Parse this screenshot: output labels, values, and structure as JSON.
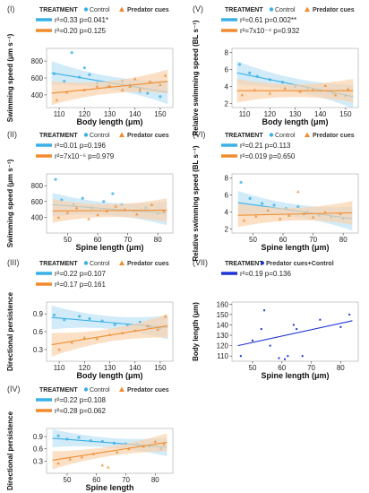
{
  "colors": {
    "control": "#3ab0e6",
    "predator": "#f08c2e",
    "control_band": "#bfe3f6",
    "predator_band": "#f9d3ae",
    "combined": "#1f35d6"
  },
  "chart_data": [
    {
      "id": "I",
      "numeral": "(I)",
      "type": "scatter",
      "legend_title": "TREATMENT",
      "legend_entries": [
        "Control",
        "Predator cues"
      ],
      "xlabel": "Body length (μm)",
      "ylabel": "Swimming speed (μm s⁻¹)",
      "xlim": [
        105,
        155
      ],
      "ylim": [
        250,
        950
      ],
      "xticks": [
        110,
        120,
        130,
        140,
        150
      ],
      "yticks": [
        400,
        600,
        800
      ],
      "stats": [
        {
          "text": "r²=0.33 p=0.041*",
          "color": "control"
        },
        {
          "text": "r²=0.20 p=0.125",
          "color": "predator"
        }
      ],
      "series": [
        {
          "color": "control",
          "fit": [
            [
              107,
              660
            ],
            [
              153,
              430
            ]
          ],
          "points": [
            [
              108,
              650
            ],
            [
              112,
              560
            ],
            [
              115,
              900
            ],
            [
              118,
              610
            ],
            [
              120,
              720
            ],
            [
              122,
              640
            ],
            [
              125,
              540
            ],
            [
              129,
              500
            ],
            [
              135,
              560
            ],
            [
              138,
              520
            ],
            [
              142,
              440
            ],
            [
              145,
              420
            ],
            [
              150,
              380
            ]
          ]
        },
        {
          "color": "predator",
          "fit": [
            [
              107,
              420
            ],
            [
              153,
              560
            ]
          ],
          "points": [
            [
              109,
              340
            ],
            [
              113,
              430
            ],
            [
              120,
              460
            ],
            [
              125,
              500
            ],
            [
              130,
              510
            ],
            [
              135,
              460
            ],
            [
              138,
              500
            ],
            [
              142,
              470
            ],
            [
              146,
              560
            ],
            [
              150,
              520
            ],
            [
              152,
              630
            ],
            [
              140,
              590
            ]
          ]
        }
      ]
    },
    {
      "id": "II",
      "numeral": "(II)",
      "type": "scatter",
      "legend_title": "TREATMENT",
      "legend_entries": [
        "Control",
        "Predator cues"
      ],
      "xlabel": "Spine length (μm)",
      "ylabel": "Swimming speed (μm s⁻¹)",
      "xlim": [
        43,
        85
      ],
      "ylim": [
        200,
        950
      ],
      "xticks": [
        50,
        60,
        70,
        80
      ],
      "yticks": [
        400,
        600,
        800
      ],
      "stats": [
        {
          "text": "r²=0.01 p=0.196",
          "color": "control"
        },
        {
          "text": "r²=7x10⁻⁵ p=0.979",
          "color": "predator"
        }
      ],
      "series": [
        {
          "color": "control",
          "fit": [
            [
              45,
              560
            ],
            [
              83,
              450
            ]
          ],
          "points": [
            [
              46,
              880
            ],
            [
              48,
              620
            ],
            [
              52,
              560
            ],
            [
              55,
              640
            ],
            [
              58,
              520
            ],
            [
              62,
              600
            ],
            [
              65,
              700
            ],
            [
              68,
              560
            ],
            [
              72,
              480
            ],
            [
              76,
              520
            ],
            [
              80,
              450
            ]
          ]
        },
        {
          "color": "predator",
          "fit": [
            [
              45,
              480
            ],
            [
              83,
              490
            ]
          ],
          "points": [
            [
              47,
              400
            ],
            [
              50,
              460
            ],
            [
              53,
              520
            ],
            [
              57,
              380
            ],
            [
              60,
              430
            ],
            [
              63,
              480
            ],
            [
              66,
              540
            ],
            [
              69,
              500
            ],
            [
              73,
              440
            ],
            [
              78,
              560
            ],
            [
              82,
              480
            ]
          ]
        }
      ]
    },
    {
      "id": "III",
      "numeral": "(III)",
      "type": "scatter",
      "legend_title": "TREATMENT",
      "legend_entries": [
        "Control",
        "Predator cues"
      ],
      "xlabel": "Body length (μm)",
      "ylabel": "Directional persistence",
      "xlim": [
        105,
        155
      ],
      "ylim": [
        0.1,
        1.1
      ],
      "xticks": [
        110,
        120,
        130,
        140,
        150
      ],
      "yticks": [
        0.3,
        0.6,
        0.9
      ],
      "stats": [
        {
          "text": "r²=0.22 p=0.107",
          "color": "control"
        },
        {
          "text": "r²=0.17 p=0.161",
          "color": "predator"
        }
      ],
      "series": [
        {
          "color": "control",
          "fit": [
            [
              107,
              0.84
            ],
            [
              153,
              0.67
            ]
          ],
          "points": [
            [
              108,
              0.88
            ],
            [
              112,
              0.8
            ],
            [
              118,
              0.86
            ],
            [
              122,
              0.82
            ],
            [
              127,
              0.78
            ],
            [
              132,
              0.72
            ],
            [
              137,
              0.7
            ],
            [
              142,
              0.76
            ],
            [
              146,
              0.68
            ],
            [
              150,
              0.66
            ]
          ]
        },
        {
          "color": "predator",
          "fit": [
            [
              107,
              0.38
            ],
            [
              153,
              0.7
            ]
          ],
          "points": [
            [
              110,
              0.3
            ],
            [
              115,
              0.42
            ],
            [
              120,
              0.5
            ],
            [
              125,
              0.48
            ],
            [
              130,
              0.55
            ],
            [
              135,
              0.58
            ],
            [
              140,
              0.62
            ],
            [
              145,
              0.7
            ],
            [
              149,
              0.64
            ],
            [
              152,
              0.86
            ]
          ]
        }
      ]
    },
    {
      "id": "IV",
      "numeral": "(IV)",
      "type": "scatter",
      "legend_title": "TREATMENT",
      "legend_entries": [
        "Control",
        "Predator cues"
      ],
      "xlabel": "Spine length",
      "ylabel": "Directional persistence",
      "xlim": [
        43,
        86
      ],
      "ylim": [
        0.0,
        1.1
      ],
      "xticks": [
        50,
        60,
        70,
        80
      ],
      "yticks": [
        0.3,
        0.6,
        0.9
      ],
      "stats": [
        {
          "text": "r²=0.22 p=0.108",
          "color": "control"
        },
        {
          "text": "r²=0.28 p=0.062",
          "color": "predator"
        }
      ],
      "series": [
        {
          "color": "control",
          "fit": [
            [
              45,
              0.86
            ],
            [
              84,
              0.64
            ]
          ],
          "points": [
            [
              47,
              0.92
            ],
            [
              50,
              0.84
            ],
            [
              54,
              0.88
            ],
            [
              58,
              0.8
            ],
            [
              62,
              0.78
            ],
            [
              66,
              0.74
            ],
            [
              70,
              0.72
            ],
            [
              74,
              0.7
            ],
            [
              78,
              0.66
            ],
            [
              82,
              0.6
            ]
          ]
        },
        {
          "color": "predator",
          "fit": [
            [
              45,
              0.32
            ],
            [
              84,
              0.76
            ]
          ],
          "points": [
            [
              47,
              0.25
            ],
            [
              51,
              0.35
            ],
            [
              55,
              0.4
            ],
            [
              59,
              0.48
            ],
            [
              62,
              0.2
            ],
            [
              64,
              0.15
            ],
            [
              67,
              0.52
            ],
            [
              71,
              0.6
            ],
            [
              76,
              0.66
            ],
            [
              80,
              0.78
            ],
            [
              83,
              0.72
            ]
          ]
        }
      ]
    },
    {
      "id": "V",
      "numeral": "(V)",
      "type": "scatter",
      "legend_title": "TREATMENT",
      "legend_entries": [
        "Control",
        "Predator cues"
      ],
      "xlabel": "Body length (μm)",
      "ylabel": "Relative swimming speed (BL s⁻¹)",
      "xlim": [
        105,
        155
      ],
      "ylim": [
        1.5,
        8.5
      ],
      "xticks": [
        110,
        120,
        130,
        140,
        150
      ],
      "yticks": [
        2,
        4,
        6,
        8
      ],
      "stats": [
        {
          "text": "r²=0.61 p=0.002**",
          "color": "control"
        },
        {
          "text": "r²=7x10⁻⁴ p=0.932",
          "color": "predator"
        }
      ],
      "series": [
        {
          "color": "control",
          "fit": [
            [
              107,
              5.6
            ],
            [
              153,
              2.8
            ]
          ],
          "points": [
            [
              108,
              6.6
            ],
            [
              112,
              5.6
            ],
            [
              115,
              5.2
            ],
            [
              120,
              4.8
            ],
            [
              125,
              4.5
            ],
            [
              130,
              4.0
            ],
            [
              135,
              3.8
            ],
            [
              140,
              3.5
            ],
            [
              145,
              3.2
            ],
            [
              150,
              2.9
            ]
          ]
        },
        {
          "color": "predator",
          "fit": [
            [
              107,
              3.5
            ],
            [
              153,
              3.5
            ]
          ],
          "points": [
            [
              109,
              3.0
            ],
            [
              114,
              3.6
            ],
            [
              120,
              3.2
            ],
            [
              126,
              3.8
            ],
            [
              132,
              3.4
            ],
            [
              137,
              3.6
            ],
            [
              142,
              4.1
            ],
            [
              146,
              3.0
            ],
            [
              151,
              3.7
            ]
          ]
        }
      ]
    },
    {
      "id": "VI",
      "numeral": "(VI)",
      "type": "scatter",
      "legend_title": "TREATMENT",
      "legend_entries": [
        "Control",
        "Predator cues"
      ],
      "xlabel": "Spine length (μm)",
      "ylabel": "Relative swimming speed (BL s⁻¹)",
      "xlim": [
        43,
        85
      ],
      "ylim": [
        1.5,
        8.5
      ],
      "xticks": [
        50,
        60,
        70,
        80
      ],
      "yticks": [
        2,
        4,
        6,
        8
      ],
      "stats": [
        {
          "text": "r²=0.21 p=0.113",
          "color": "control"
        },
        {
          "text": "r²=0.019 p=0.650",
          "color": "predator"
        }
      ],
      "series": [
        {
          "color": "control",
          "fit": [
            [
              45,
              5.1
            ],
            [
              83,
              3.2
            ]
          ],
          "points": [
            [
              46,
              7.5
            ],
            [
              49,
              5.6
            ],
            [
              53,
              5.0
            ],
            [
              57,
              4.8
            ],
            [
              61,
              4.4
            ],
            [
              65,
              4.6
            ],
            [
              68,
              4.0
            ],
            [
              72,
              3.6
            ],
            [
              76,
              3.4
            ],
            [
              80,
              3.2
            ]
          ]
        },
        {
          "color": "predator",
          "fit": [
            [
              45,
              3.6
            ],
            [
              83,
              3.9
            ]
          ],
          "points": [
            [
              47,
              3.0
            ],
            [
              51,
              3.5
            ],
            [
              55,
              4.2
            ],
            [
              59,
              3.2
            ],
            [
              62,
              3.6
            ],
            [
              65,
              6.4
            ],
            [
              67,
              3.8
            ],
            [
              70,
              3.4
            ],
            [
              74,
              4.0
            ],
            [
              79,
              3.8
            ]
          ]
        }
      ]
    },
    {
      "id": "VII",
      "numeral": "(VII)",
      "type": "scatter",
      "legend_title": "TREATMENT",
      "legend_entries": [
        "Predator cues+Control"
      ],
      "xlabel": "Spine length (μm)",
      "ylabel": "Body length (μm)",
      "xlim": [
        43,
        86
      ],
      "ylim": [
        105,
        162
      ],
      "xticks": [
        50,
        60,
        70,
        80
      ],
      "yticks": [
        110,
        120,
        130,
        140,
        150,
        160
      ],
      "stats": [
        {
          "text": "r²=0.19 p=0.136",
          "color": "combined"
        }
      ],
      "series": [
        {
          "color": "combined",
          "fit": [
            [
              45,
              120
            ],
            [
              84,
              144
            ]
          ],
          "points": [
            [
              46,
              110
            ],
            [
              50,
              125
            ],
            [
              53,
              136
            ],
            [
              54,
              154
            ],
            [
              56,
              120
            ],
            [
              59,
              108
            ],
            [
              61,
              107
            ],
            [
              62,
              110
            ],
            [
              64,
              140
            ],
            [
              65,
              136
            ],
            [
              67,
              110
            ],
            [
              73,
              145
            ],
            [
              80,
              138
            ],
            [
              83,
              150
            ]
          ]
        }
      ]
    }
  ]
}
